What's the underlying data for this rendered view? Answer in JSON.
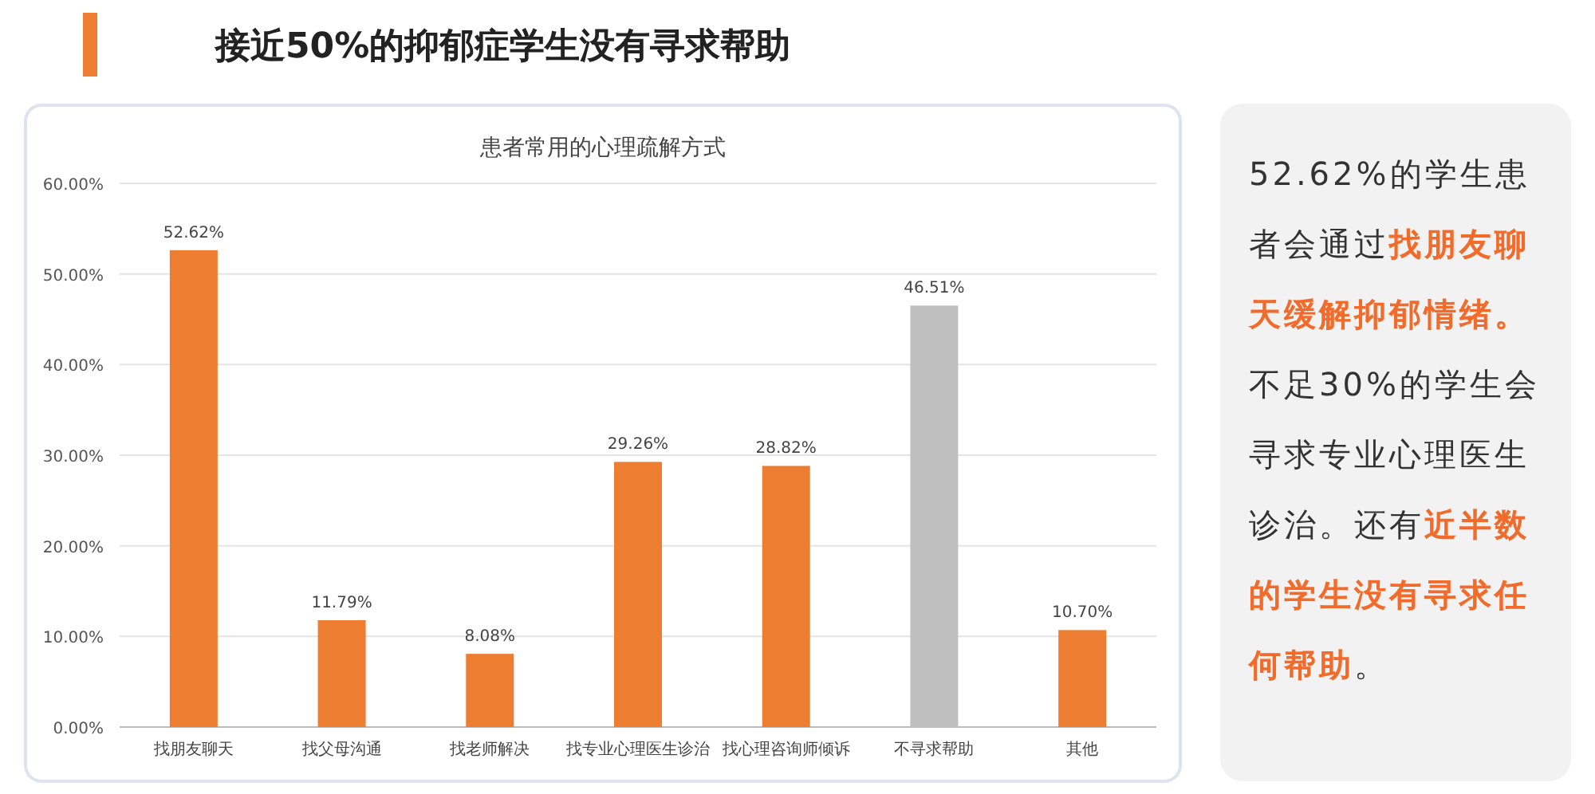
{
  "chart_data": [
    {
      "type": "bar",
      "title": "接近50%的抑郁症学生没有寻求帮助",
      "subtitle": "患者常用的心理疏解方式",
      "categories": [
        "找朋友聊天",
        "找父母沟通",
        "找老师解决",
        "找专业心理医生诊治",
        "找心理咨询师倾诉",
        "不寻求帮助",
        "其他"
      ],
      "values": [
        52.62,
        11.79,
        8.08,
        29.26,
        28.82,
        46.51,
        10.7
      ],
      "colors": [
        "#ed7d31",
        "#ed7d31",
        "#ed7d31",
        "#ed7d31",
        "#ed7d31",
        "#bfbfbf",
        "#ed7d31"
      ],
      "value_labels": [
        "52.62%",
        "11.79%",
        "8.08%",
        "29.26%",
        "28.82%",
        "46.51%",
        "10.70%"
      ],
      "ylim": [
        0,
        60
      ],
      "yticks": [
        {
          "value": 0,
          "label": "0.00%"
        },
        {
          "value": 10,
          "label": "10.00%"
        },
        {
          "value": 20,
          "label": "20.00%"
        },
        {
          "value": 30,
          "label": "30.00%"
        },
        {
          "value": 40,
          "label": "40.00%"
        },
        {
          "value": 50,
          "label": "50.00%"
        },
        {
          "value": 60,
          "label": "60.00%"
        }
      ],
      "grid": "y"
    },
    {
      "type": "other",
      "annotations": [
        "52.62%的学生患者会通过",
        "找朋友聊天缓解抑郁情绪。",
        "不足30%的学生会寻求专业心理医生诊治。还有",
        "近半数的学生没有寻求任何帮助",
        "。"
      ]
    }
  ]
}
